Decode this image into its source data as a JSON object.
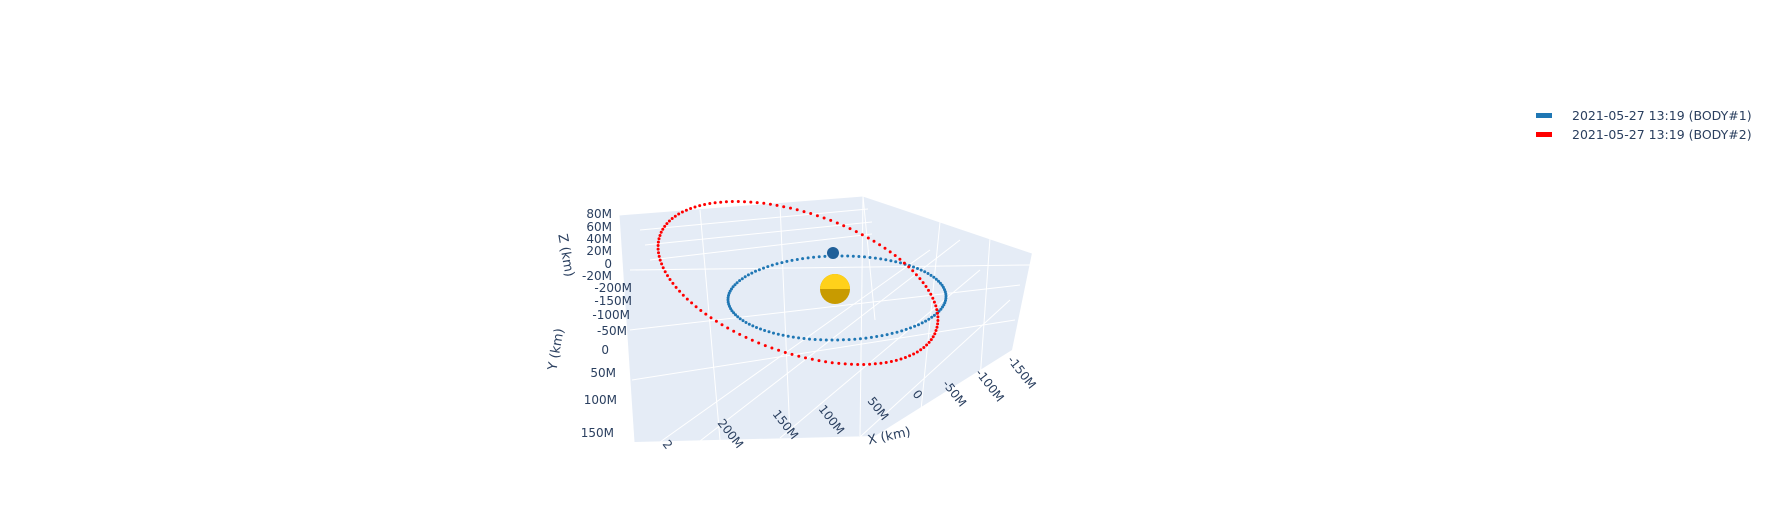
{
  "chart_data": {
    "type": "scatter3d",
    "series": [
      {
        "name": "2021-05-27 13:19 (BODY#1)",
        "color": "#1f77b4",
        "style": "dotted-orbit",
        "orbit_radius": 108000000
      },
      {
        "name": "2021-05-27 13:19 (BODY#2)",
        "color": "#ff0000",
        "style": "dotted-orbit"
      }
    ],
    "central_body": {
      "name": "sun",
      "color": "#ffd11a"
    },
    "axes": {
      "x": {
        "label": "X (km)",
        "ticks": [
          "-150M",
          "-100M",
          "-50M",
          "0",
          "50M",
          "100M",
          "150M",
          "200M",
          "2"
        ]
      },
      "y": {
        "label": "Y (km)",
        "ticks": [
          "-200M",
          "-150M",
          "-100M",
          "-50M",
          "0",
          "50M",
          "100M",
          "150M"
        ]
      },
      "z": {
        "label": "Z (km)",
        "ticks": [
          "80M",
          "60M",
          "40M",
          "20M",
          "0",
          "-20M"
        ]
      }
    },
    "scene_background": "#e5ecf6",
    "grid": true,
    "legend_position": "top-right"
  }
}
